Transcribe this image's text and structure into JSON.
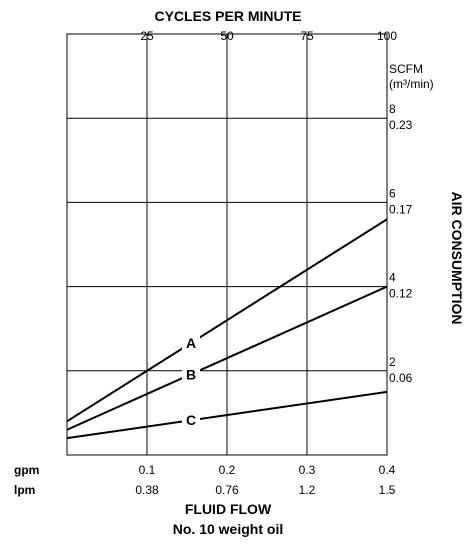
{
  "chart_data": {
    "type": "line",
    "title": "CYCLES PER MINUTE",
    "top_ticks": [
      "25",
      "50",
      "75",
      "100"
    ],
    "xlabel": "FLUID FLOW",
    "subtitle": "No. 10 weight oil",
    "x_unit_labels": [
      "gpm",
      "lpm"
    ],
    "x_ticks_gpm": [
      "0.1",
      "0.2",
      "0.3",
      "0.4"
    ],
    "x_ticks_lpm": [
      "0.38",
      "0.76",
      "1.2",
      "1.5"
    ],
    "xlim": [
      0,
      0.4
    ],
    "ylabel": "AIR CONSUMPTION",
    "y_unit_line1": "SCFM",
    "y_unit_line2": "(m³/min)",
    "y_ticks_scfm": [
      "2",
      "4",
      "6",
      "8"
    ],
    "y_ticks_m3": [
      "0.06",
      "0.12",
      "0.17",
      "0.23"
    ],
    "ylim": [
      0,
      10
    ],
    "grid": true,
    "series": [
      {
        "name": "A",
        "x": [
          0,
          0.4
        ],
        "y": [
          0.8,
          5.6
        ],
        "label_x": 0.155
      },
      {
        "name": "B",
        "x": [
          0,
          0.4
        ],
        "y": [
          0.6,
          4.0
        ],
        "label_x": 0.155
      },
      {
        "name": "C",
        "x": [
          0,
          0.4
        ],
        "y": [
          0.4,
          1.5
        ],
        "label_x": 0.155
      }
    ]
  }
}
